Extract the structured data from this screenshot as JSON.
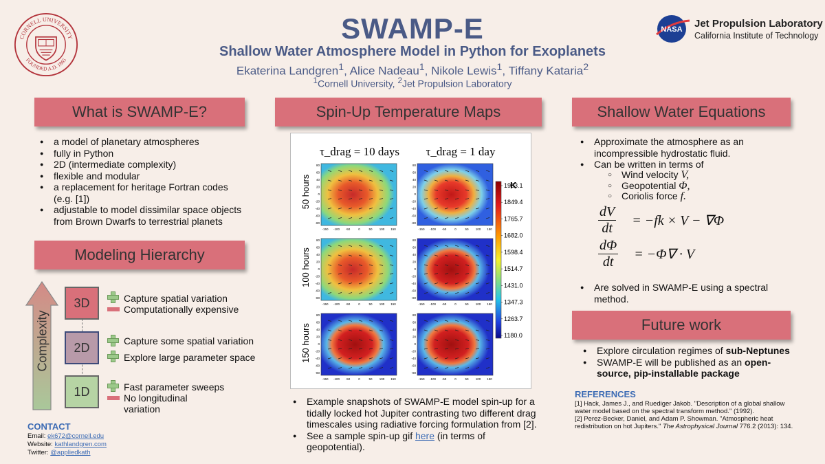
{
  "header": {
    "title": "SWAMP-E",
    "subtitle": "Shallow Water Atmosphere Model in Python for Exoplanets",
    "authors": [
      {
        "name": "Ekaterina Landgren",
        "sup": "1"
      },
      {
        "name": "Alice Nadeau",
        "sup": "1"
      },
      {
        "name": "Nikole Lewis",
        "sup": "1"
      },
      {
        "name": "Tiffany Kataria",
        "sup": "2"
      }
    ],
    "affiliations": [
      {
        "sup": "1",
        "name": "Cornell University"
      },
      {
        "sup": "2",
        "name": "Jet Propulsion Laboratory"
      }
    ]
  },
  "logos": {
    "cornell_seal_text_top": "CORNELL UNIVERSITY",
    "cornell_seal_text_bottom": "FOUNDED A.D. 1865",
    "nasa_text": "NASA",
    "jpl_name": "Jet Propulsion Laboratory",
    "jpl_sub": "California Institute of Technology"
  },
  "what_is": {
    "heading": "What is SWAMP-E?",
    "bullets": [
      "a model of planetary atmospheres",
      "fully in Python",
      "2D (intermediate complexity)",
      "flexible and modular",
      "a replacement for heritage Fortran codes (e.g. [1])",
      "adjustable to model dissimilar space objects from Brown Dwarfs to terrestrial planets"
    ]
  },
  "hierarchy": {
    "heading": "Modeling Hierarchy",
    "axis_label": "Complexity",
    "tiers": [
      {
        "label": "3D",
        "pros": [
          "Capture spatial variation"
        ],
        "cons": [
          "Computationally expensive"
        ]
      },
      {
        "label": "2D",
        "pros": [
          "Capture some spatial variation",
          "Explore large parameter space"
        ],
        "cons": []
      },
      {
        "label": "1D",
        "pros": [
          "Fast parameter sweeps"
        ],
        "cons": [
          "No longitudinal variation"
        ]
      }
    ]
  },
  "contact": {
    "heading": "CONTACT",
    "email_label": "Email:",
    "email": "ek672@cornell.edu",
    "website_label": "Website:",
    "website": "kathlandgren.com",
    "twitter_label": "Twitter:",
    "twitter": "@appliedkath"
  },
  "spinup": {
    "heading": "Spin-Up Temperature Maps",
    "col_titles": [
      "τ_drag = 10 days",
      "τ_drag = 1 day"
    ],
    "row_labels": [
      "50 hours",
      "100 hours",
      "150 hours"
    ],
    "colorbar_unit": "K",
    "colorbar_ticks": [
      "1933.1",
      "1849.4",
      "1765.7",
      "1682.0",
      "1598.4",
      "1514.7",
      "1431.0",
      "1347.3",
      "1263.7",
      "1180.0"
    ],
    "x_ticks": [
      "-150",
      "-100",
      "-50",
      "0",
      "50",
      "100",
      "150"
    ],
    "y_ticks": [
      "80",
      "60",
      "40",
      "20",
      "0",
      "-20",
      "-40",
      "-60",
      "-80"
    ],
    "caption_1": "Example snapshots of SWAMP-E model spin-up for a tidally locked hot Jupiter contrasting two different drag timescales using radiative forcing formulation from [2].",
    "caption_2_pre": "See a sample spin-up gif ",
    "caption_2_link": "here",
    "caption_2_post": " (in terms of geopotential)."
  },
  "equations": {
    "heading": "Shallow Water Equations",
    "bullet_1": "Approximate the atmosphere as an incompressible hydrostatic fluid.",
    "bullet_2": "Can be written in terms of",
    "terms": [
      {
        "label": "Wind velocity",
        "symbol": "V,"
      },
      {
        "label": "Geopotential",
        "symbol": "Φ,"
      },
      {
        "label": "Coriolis force",
        "symbol": "f."
      }
    ],
    "eq1_num": "dV",
    "eq1_den": "dt",
    "eq1_rhs": "= −fk × V − ∇Φ",
    "eq2_num": "dΦ",
    "eq2_den": "dt",
    "eq2_rhs": "= −Φ∇ · V",
    "bullet_3": "Are solved in SWAMP-E using a spectral method."
  },
  "future": {
    "heading": "Future work",
    "b1_pre": "Explore circulation regimes of ",
    "b1_bold": "sub-Neptunes",
    "b2_pre": "SWAMP-E will be published as an ",
    "b2_bold": "open-source, pip-installable package"
  },
  "references": {
    "heading": "REFERENCES",
    "ref1_pre": "[1] Hack, James J., and Ruediger Jakob. \"Description of a global shallow water model based on the spectral transform method.\" (1992).",
    "ref2_pre": "[2] Perez-Becker, Daniel, and Adam P. Showman. \"Atmospheric heat redistribution on hot Jupiters.\" ",
    "ref2_journal": "The Astrophysical Journal",
    "ref2_post": " 776.2 (2013): 134."
  }
}
